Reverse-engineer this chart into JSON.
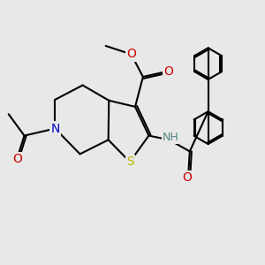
{
  "bg_color": "#e8e8e8",
  "bond_color": "#000000",
  "bond_width": 1.5,
  "fig_size": [
    3.0,
    3.0
  ],
  "dpi": 100,
  "S_color": "#b8b800",
  "N_color": "#0000cc",
  "O_color": "#cc0000",
  "NH_color": "#558888",
  "label_fontsize": 9.0,
  "xlim": [
    0,
    10
  ],
  "ylim": [
    0,
    10
  ]
}
